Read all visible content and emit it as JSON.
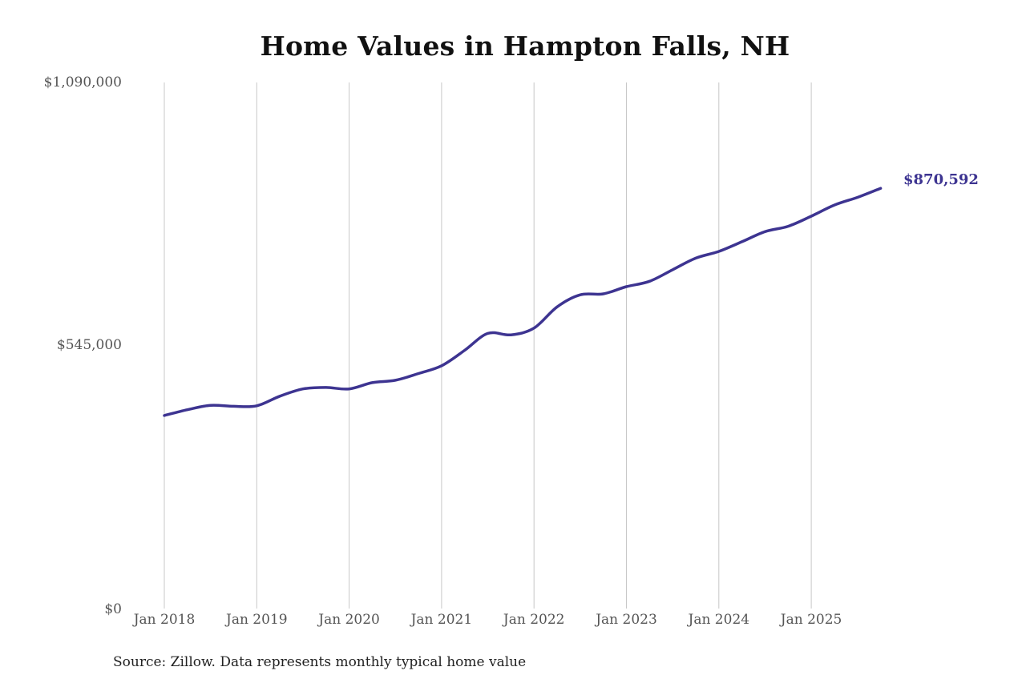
{
  "chart_data": {
    "type": "line",
    "title": "Home Values in Hampton Falls, NH",
    "xlabel": "",
    "ylabel": "",
    "ylim": [
      0,
      1090000
    ],
    "y_ticks": [
      "$0",
      "$545,000",
      "$1,090,000"
    ],
    "x_ticks": [
      "Jan 2018",
      "Jan 2019",
      "Jan 2020",
      "Jan 2021",
      "Jan 2022",
      "Jan 2023",
      "Jan 2024",
      "Jan 2025"
    ],
    "grid": "vertical",
    "legend": "none",
    "series": [
      {
        "name": "Typical home value",
        "color": "#3d3491",
        "x": [
          "2018-01",
          "2018-04",
          "2018-07",
          "2018-10",
          "2019-01",
          "2019-04",
          "2019-07",
          "2019-10",
          "2020-01",
          "2020-04",
          "2020-07",
          "2020-10",
          "2021-01",
          "2021-04",
          "2021-07",
          "2021-10",
          "2022-01",
          "2022-04",
          "2022-07",
          "2022-10",
          "2023-01",
          "2023-04",
          "2023-07",
          "2023-10",
          "2024-01",
          "2024-04",
          "2024-07",
          "2024-10",
          "2025-01",
          "2025-04",
          "2025-07",
          "2025-10"
        ],
        "values": [
          400000,
          412000,
          421000,
          419000,
          420000,
          440000,
          455000,
          458000,
          455000,
          468000,
          473000,
          487000,
          503000,
          535000,
          570000,
          567000,
          581000,
          625000,
          650000,
          652000,
          667000,
          678000,
          702000,
          726000,
          740000,
          760000,
          781000,
          792000,
          813000,
          836000,
          852000,
          870592
        ]
      }
    ],
    "end_label": "$870,592",
    "source": "Source: Zillow. Data represents monthly typical home value"
  },
  "title": "Home Values in Hampton Falls, NH",
  "y_axis": {
    "top": "$1,090,000",
    "mid": "$545,000",
    "bottom": "$0"
  },
  "x_axis": {
    "labels": [
      "Jan 2018",
      "Jan 2019",
      "Jan 2020",
      "Jan 2021",
      "Jan 2022",
      "Jan 2023",
      "Jan 2024",
      "Jan 2025"
    ]
  },
  "end_label": "$870,592",
  "source": "Source: Zillow. Data represents monthly typical home value",
  "colors": {
    "line": "#3d3491",
    "grid": "#c8c8c8",
    "axis_text": "#555555"
  }
}
